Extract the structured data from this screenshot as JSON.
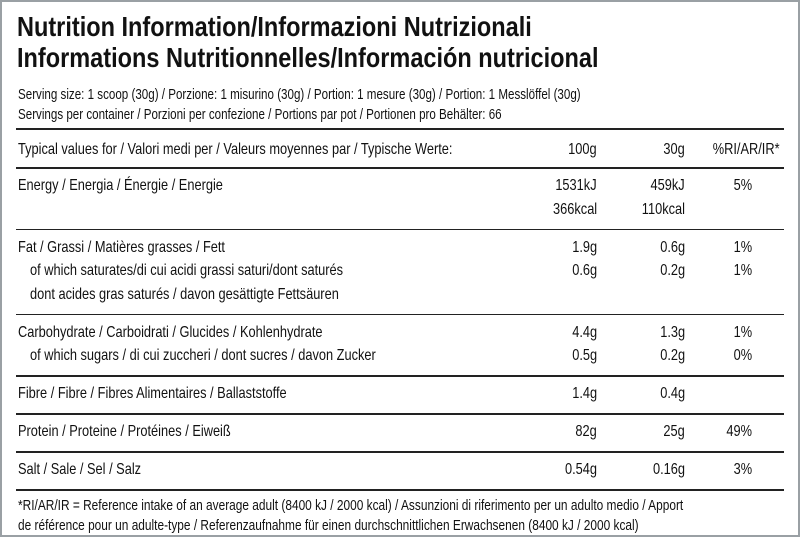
{
  "title": [
    "Nutrition Information/Informazioni Nutrizionali",
    "Informations Nutritionnelles/Información nutricional"
  ],
  "serving": [
    "Serving size: 1 scoop (30g) / Porzione: 1 misurino (30g) / Portion: 1 mesure (30g) / Portion: 1 Messlöffel (30g)",
    "Servings per container / Porzioni per confezione / Portions par pot / Portionen pro Behälter: 66"
  ],
  "table": {
    "header": {
      "label": "Typical values for / Valori medi per / Valeurs moyennes par / Typische Werte:",
      "per100g": "100g",
      "per30g": "30g",
      "ri": "%RI/AR/IR*"
    },
    "groups": [
      [
        {
          "label": "Energy / Energia / Énergie / Energie",
          "per100g": "1531kJ",
          "per30g": "459kJ",
          "ri": "5%"
        },
        {
          "per100g": "366kcal",
          "per30g": "110kcal"
        }
      ],
      [
        {
          "label": "Fat / Grassi / Matières grasses / Fett",
          "per100g": "1.9g",
          "per30g": "0.6g",
          "ri": "1%"
        },
        {
          "label": "of which saturates/di cui acidi grassi saturi/dont saturés",
          "per100g": "0.6g",
          "per30g": "0.2g",
          "ri": "1%"
        },
        {
          "label": "dont acides gras saturés / davon gesättigte Fettsäuren"
        }
      ],
      [
        {
          "label": "Carbohydrate / Carboidrati / Glucides / Kohlenhydrate",
          "per100g": "4.4g",
          "per30g": "1.3g",
          "ri": "1%"
        },
        {
          "label": "of which sugars / di cui zuccheri / dont sucres / davon Zucker",
          "per100g": "0.5g",
          "per30g": "0.2g",
          "ri": "0%"
        }
      ],
      [
        {
          "label": "Fibre / Fibre / Fibres Alimentaires / Ballaststoffe",
          "per100g": "1.4g",
          "per30g": "0.4g"
        }
      ],
      [
        {
          "label": "Protein / Proteine / Protéines / Eiweiß",
          "per100g": "82g",
          "per30g": "25g",
          "ri": "49%"
        }
      ],
      [
        {
          "label": "Salt / Sale / Sel / Salz",
          "per100g": "0.54g",
          "per30g": "0.16g",
          "ri": "3%"
        }
      ]
    ]
  },
  "footnote": [
    "*RI/AR/IR = Reference intake of an average adult (8400 kJ / 2000 kcal)  / Assunzioni di riferimento per un adulto medio / Apport",
    "de référence pour un adulte-type / Referenzaufnahme für einen durchschnittlichen Erwachsenen (8400 kJ / 2000 kcal)"
  ]
}
